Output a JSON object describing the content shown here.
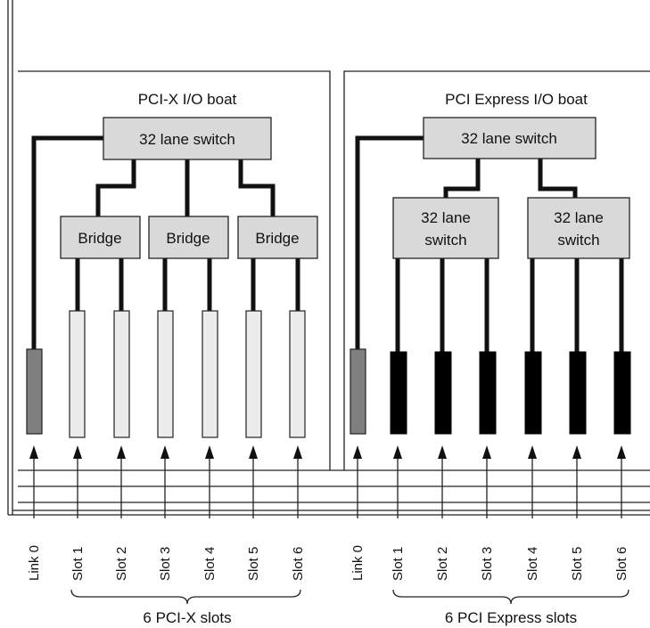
{
  "boats": [
    {
      "title": "PCI-X I/O boat",
      "top_switch": "32 lane switch",
      "bridges": [
        "Bridge",
        "Bridge",
        "Bridge"
      ],
      "connector_colors": {
        "link": "#7f7f7f",
        "slot": "#ececec"
      },
      "labels": [
        "Link 0",
        "Slot 1",
        "Slot 2",
        "Slot 3",
        "Slot 4",
        "Slot 5",
        "Slot 6"
      ],
      "group_label": "6 PCI-X slots"
    },
    {
      "title": "PCI Express I/O boat",
      "top_switch": "32 lane switch",
      "sub_switches": [
        [
          "32 lane",
          "switch"
        ],
        [
          "32 lane",
          "switch"
        ]
      ],
      "connector_colors": {
        "link": "#7f7f7f",
        "slot": "#000000"
      },
      "labels": [
        "Link 0",
        "Slot 1",
        "Slot 2",
        "Slot 3",
        "Slot 4",
        "Slot 5",
        "Slot 6"
      ],
      "group_label": "6 PCI Express slots"
    }
  ],
  "colors": {
    "box_fill": "#d9d9d9",
    "line": "#111111"
  }
}
